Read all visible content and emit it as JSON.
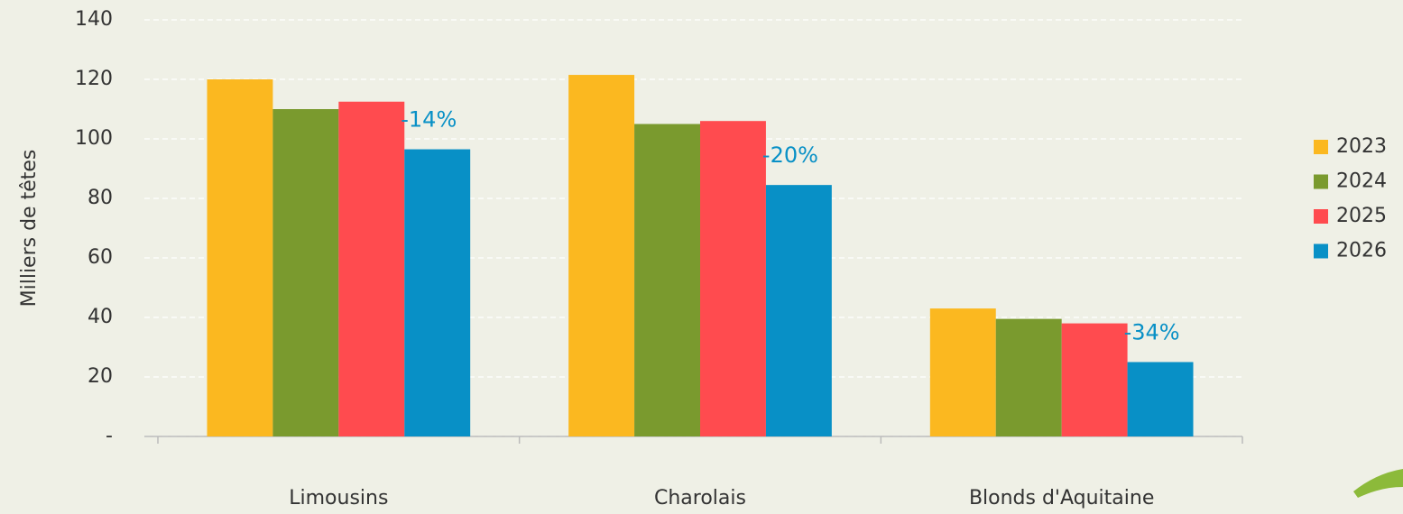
{
  "chart_data": {
    "type": "bar",
    "y_label": "Milliers de têtes",
    "categories": [
      "Limousins",
      "Charolais",
      "Blonds d'Aquitaine"
    ],
    "series": [
      {
        "name": "2023",
        "color": "#fbb820",
        "values": [
          120,
          121.5,
          43
        ]
      },
      {
        "name": "2024",
        "color": "#7a9a2e",
        "values": [
          110,
          105,
          39.5
        ]
      },
      {
        "name": "2025",
        "color": "#ff4b4f",
        "values": [
          112.5,
          106,
          38
        ]
      },
      {
        "name": "2026",
        "color": "#0890c6",
        "values": [
          96.5,
          84.5,
          25
        ]
      }
    ],
    "annotations": [
      "-14%",
      "-20%",
      "-34%"
    ],
    "ylim": [
      0,
      140
    ],
    "yticks": [
      {
        "value": 0,
        "label": "-"
      },
      20,
      40,
      60,
      80,
      100,
      120,
      140
    ],
    "grid": true,
    "legend": "right"
  }
}
